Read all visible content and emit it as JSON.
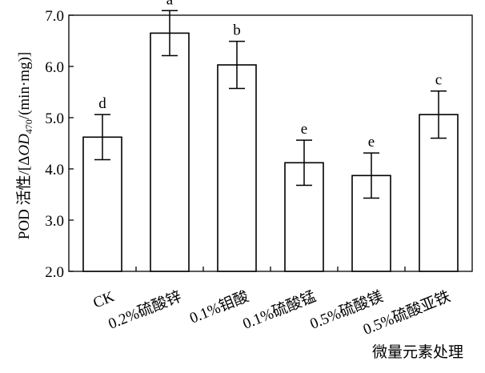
{
  "chart_data": {
    "type": "bar",
    "ylabel_prefix": "POD 活性/[Δ",
    "ylabel_od": "OD",
    "ylabel_sub": "470",
    "ylabel_suffix": "/(min·mg)]",
    "xlabel": "微量元素处理",
    "ylim": [
      2.0,
      7.0
    ],
    "yticks": [
      "2.0",
      "3.0",
      "4.0",
      "5.0",
      "6.0",
      "7.0"
    ],
    "categories": [
      "CK",
      "0.2%硫酸锌",
      "0.1%钼酸",
      "0.1%硫酸锰",
      "0.5%硫酸镁",
      "0.5%硫酸亚铁"
    ],
    "values": [
      4.62,
      6.65,
      6.03,
      4.12,
      3.87,
      5.06
    ],
    "errors": [
      0.44,
      0.44,
      0.46,
      0.44,
      0.44,
      0.46
    ],
    "significance": [
      "d",
      "a",
      "b",
      "e",
      "e",
      "c"
    ],
    "grid": false,
    "bar_fill": "#ffffff",
    "bar_stroke": "#000000"
  }
}
